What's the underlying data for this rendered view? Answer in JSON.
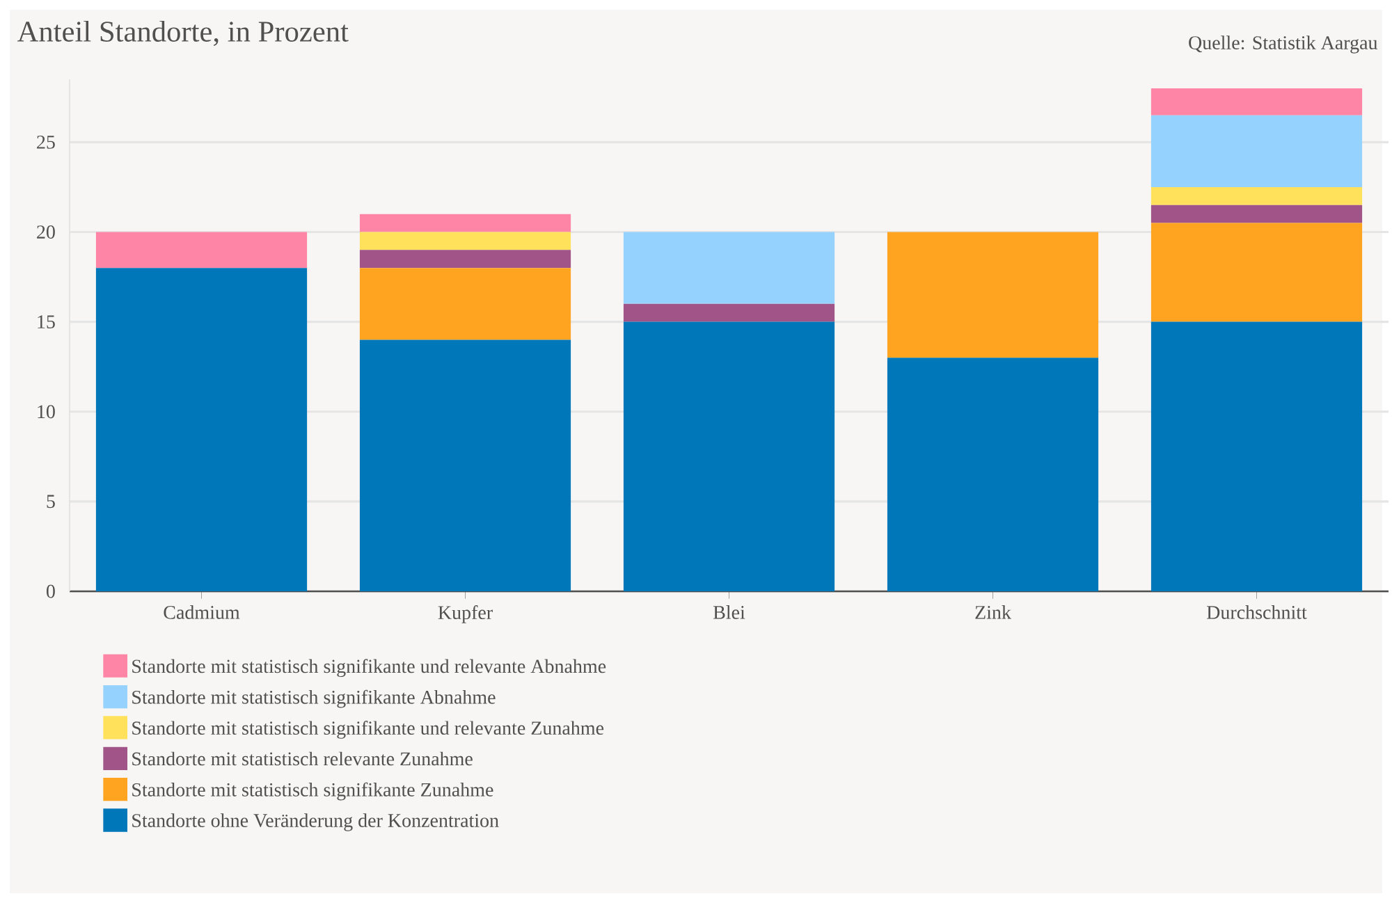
{
  "chart_data": {
    "type": "bar",
    "stacked": true,
    "title": "Anteil Standorte, in Prozent",
    "annotations": [
      "Quelle: Statistik Aargau"
    ],
    "categories": [
      "Cadmium",
      "Kupfer",
      "Blei",
      "Zink",
      "Durchschnitt"
    ],
    "series": [
      {
        "name": "Standorte ohne Veränderung der Konzentration",
        "color": "#0077b8",
        "values": [
          18,
          14,
          15,
          13,
          15
        ]
      },
      {
        "name": "Standorte mit statistisch signifikante Zunahme",
        "color": "#ffa420",
        "values": [
          0,
          4,
          0,
          7,
          5.5
        ]
      },
      {
        "name": "Standorte mit statistisch relevante Zunahme",
        "color": "#a05487",
        "values": [
          0,
          1,
          1,
          0,
          1
        ]
      },
      {
        "name": "Standorte mit statistisch signifikante und relevante Zunahme",
        "color": "#ffe15c",
        "values": [
          0,
          1,
          0,
          0,
          1
        ]
      },
      {
        "name": "Standorte mit statistisch signifikante Abnahme",
        "color": "#96d2fe",
        "values": [
          0,
          0,
          4,
          0,
          4
        ]
      },
      {
        "name": "Standorte mit statistisch signifikante und relevante Abnahme",
        "color": "#ff85a6",
        "values": [
          2,
          1,
          0,
          0,
          1.5
        ]
      }
    ],
    "ylim": [
      0,
      28.5
    ],
    "yticks": [
      0,
      5,
      10,
      15,
      20,
      25
    ],
    "grid": "y",
    "legend": "bottom"
  }
}
